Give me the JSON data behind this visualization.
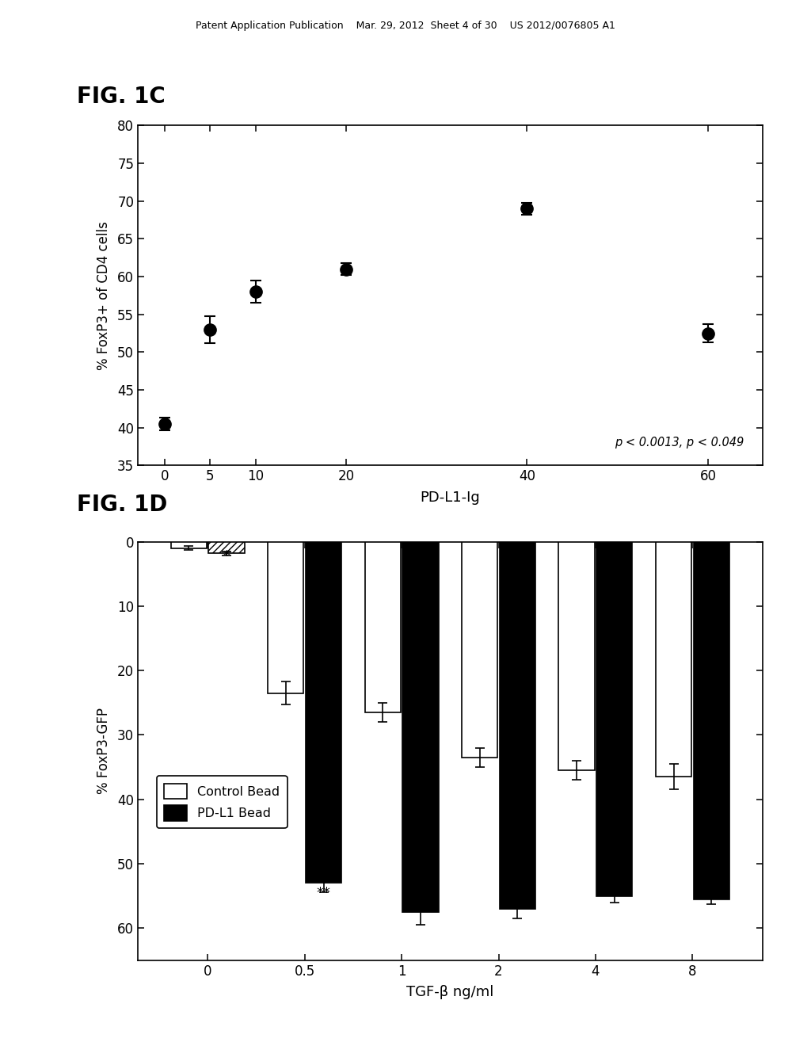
{
  "fig1c": {
    "title": "FIG. 1C",
    "x": [
      0,
      5,
      10,
      20,
      40,
      60
    ],
    "y": [
      40.5,
      53.0,
      58.0,
      61.0,
      69.0,
      52.5
    ],
    "yerr": [
      0.8,
      1.8,
      1.5,
      0.8,
      0.8,
      1.2
    ],
    "xlabel": "PD-L1-Ig",
    "ylabel": "% FoxP3+ of CD4 cells",
    "ylim": [
      35,
      80
    ],
    "yticks": [
      35,
      40,
      45,
      50,
      55,
      60,
      65,
      70,
      75,
      80
    ],
    "xticks": [
      0,
      5,
      10,
      20,
      40,
      60
    ],
    "annotation": "p < 0.0013, p < 0.049"
  },
  "fig1d": {
    "title": "FIG. 1D",
    "x_labels": [
      "0",
      "0.5",
      "1",
      "2",
      "4",
      "8"
    ],
    "control_bead_values": [
      1.0,
      23.5,
      26.5,
      33.5,
      35.5,
      36.5
    ],
    "control_bead_errors": [
      0.3,
      1.8,
      1.5,
      1.5,
      1.5,
      2.0
    ],
    "pdl1_bead_values": [
      1.8,
      53.0,
      57.5,
      57.0,
      55.0,
      55.5
    ],
    "pdl1_bead_errors": [
      0.3,
      1.5,
      2.0,
      1.5,
      1.0,
      0.8
    ],
    "xlabel": "TGF-β ng/ml",
    "ylabel": "% FoxP3-GFP",
    "ylim": [
      0,
      65
    ],
    "yticks": [
      0,
      10,
      20,
      30,
      40,
      50,
      60
    ],
    "annotation_star": "*",
    "annotation_dstar": "**",
    "legend_control": "Control Bead",
    "legend_pdl1": "PD-L1 Bead"
  },
  "header_text": "Patent Application Publication    Mar. 29, 2012  Sheet 4 of 30    US 2012/0076805 A1",
  "background_color": "#ffffff"
}
